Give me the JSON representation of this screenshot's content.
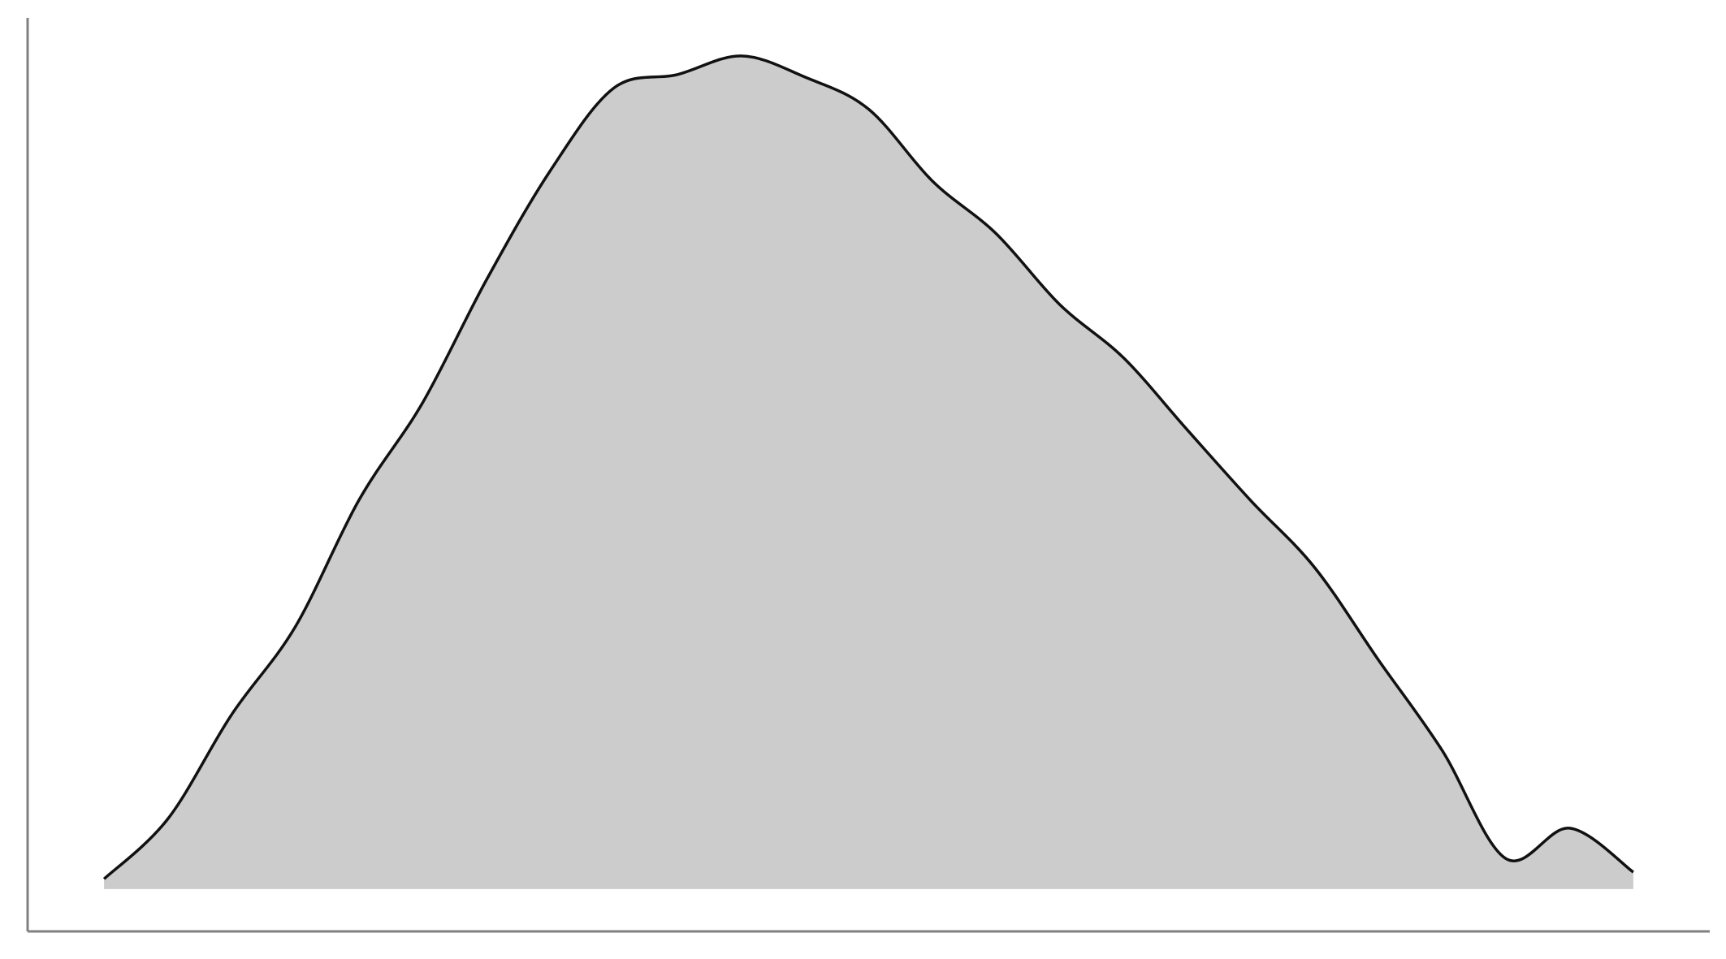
{
  "chart_data": {
    "type": "area",
    "title": "",
    "xlabel": "",
    "ylabel": "",
    "grid": false,
    "legend": "none",
    "x": [
      0.0,
      0.0417,
      0.0833,
      0.125,
      0.1667,
      0.2083,
      0.25,
      0.2917,
      0.3333,
      0.375,
      0.4167,
      0.4583,
      0.5,
      0.5417,
      0.5833,
      0.625,
      0.6667,
      0.7083,
      0.75,
      0.7917,
      0.8333,
      0.875,
      0.9167,
      0.9583,
      1.0
    ],
    "y": [
      0.012,
      0.083,
      0.206,
      0.31,
      0.46,
      0.575,
      0.72,
      0.849,
      0.947,
      0.963,
      0.985,
      0.96,
      0.922,
      0.837,
      0.775,
      0.691,
      0.628,
      0.543,
      0.459,
      0.38,
      0.271,
      0.164,
      0.036,
      0.072,
      0.02
    ],
    "xlim": [
      -0.05,
      1.05
    ],
    "ylim": [
      -0.05,
      1.03
    ],
    "colors": {
      "fill": "#cccccc",
      "line": "#111111",
      "axis": "#808080"
    }
  }
}
